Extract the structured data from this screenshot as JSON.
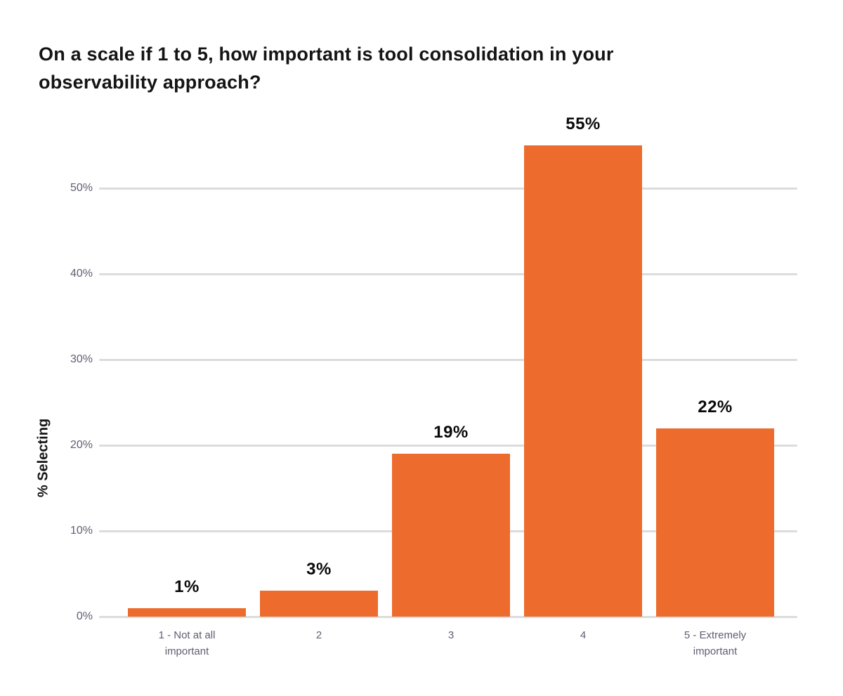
{
  "colors": {
    "bar": "#ED6C2D",
    "gridline": "#DCDCDC",
    "axis_text": "#5E5E73",
    "title_text": "#141414",
    "data_label": "#0A0A0A",
    "background": "#FFFFFF"
  },
  "chart_data": {
    "type": "bar",
    "title": "On a scale if 1 to 5, how important is tool consolidation in your observability approach?",
    "categories": [
      "1 - Not at all important",
      "2",
      "3",
      "4",
      "5 - Extremely important"
    ],
    "values": [
      1,
      3,
      19,
      55,
      22
    ],
    "data_labels": [
      "1%",
      "3%",
      "19%",
      "55%",
      "22%"
    ],
    "xlabel": "",
    "ylabel": "% Selecting",
    "ytick_labels": [
      "0%",
      "10%",
      "20%",
      "30%",
      "40%",
      "50%"
    ],
    "ytick_values": [
      0,
      10,
      20,
      30,
      40,
      50
    ],
    "ylim": [
      0,
      55
    ],
    "grid": "horizontal",
    "legend_position": "none",
    "bar_color": "#ED6C2D"
  }
}
